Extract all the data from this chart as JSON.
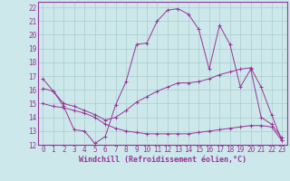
{
  "xlabel": "Windchill (Refroidissement éolien,°C)",
  "bg_color": "#cce8ea",
  "grid_color": "#aacccc",
  "line_color": "#993399",
  "spine_color": "#993399",
  "x_range": [
    -0.5,
    23.5
  ],
  "y_range": [
    12,
    22.4
  ],
  "yticks": [
    12,
    13,
    14,
    15,
    16,
    17,
    18,
    19,
    20,
    21,
    22
  ],
  "xticks": [
    0,
    1,
    2,
    3,
    4,
    5,
    6,
    7,
    8,
    9,
    10,
    11,
    12,
    13,
    14,
    15,
    16,
    17,
    18,
    19,
    20,
    21,
    22,
    23
  ],
  "series1_x": [
    0,
    1,
    2,
    3,
    4,
    5,
    6,
    7,
    8,
    9,
    10,
    11,
    12,
    13,
    14,
    15,
    16,
    17,
    18,
    19,
    20,
    21,
    22,
    23
  ],
  "series1_y": [
    16.8,
    15.9,
    14.8,
    13.1,
    13.0,
    12.1,
    12.6,
    14.9,
    16.6,
    19.3,
    19.4,
    21.0,
    21.8,
    21.9,
    21.5,
    20.4,
    17.5,
    20.7,
    19.3,
    16.2,
    17.5,
    14.0,
    13.5,
    12.5
  ],
  "series2_x": [
    0,
    1,
    2,
    3,
    4,
    5,
    6,
    7,
    8,
    9,
    10,
    11,
    12,
    13,
    14,
    15,
    16,
    17,
    18,
    19,
    20,
    21,
    22,
    23
  ],
  "series2_y": [
    16.1,
    15.9,
    15.0,
    14.8,
    14.5,
    14.2,
    13.8,
    14.0,
    14.5,
    15.1,
    15.5,
    15.9,
    16.2,
    16.5,
    16.5,
    16.6,
    16.8,
    17.1,
    17.3,
    17.5,
    17.6,
    16.2,
    14.2,
    12.3
  ],
  "series3_x": [
    0,
    1,
    2,
    3,
    4,
    5,
    6,
    7,
    8,
    9,
    10,
    11,
    12,
    13,
    14,
    15,
    16,
    17,
    18,
    19,
    20,
    21,
    22,
    23
  ],
  "series3_y": [
    15.0,
    14.8,
    14.7,
    14.5,
    14.3,
    14.0,
    13.5,
    13.2,
    13.0,
    12.9,
    12.8,
    12.8,
    12.8,
    12.8,
    12.8,
    12.9,
    13.0,
    13.1,
    13.2,
    13.3,
    13.4,
    13.4,
    13.3,
    12.3
  ],
  "tick_fontsize": 5.5,
  "xlabel_fontsize": 6.0
}
